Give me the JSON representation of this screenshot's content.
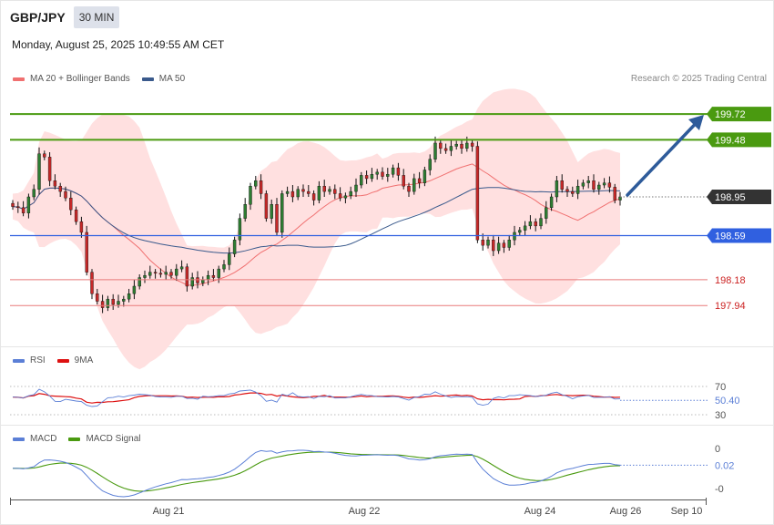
{
  "header": {
    "symbol": "GBP/JPY",
    "timeframe": "30 MIN",
    "datetime": "Monday, August 25, 2025 10:49:55 AM CET"
  },
  "legend": {
    "ma20_label": "MA 20 + Bollinger Bands",
    "ma50_label": "MA 50",
    "credit": "Research © 2025 Trading Central"
  },
  "colors": {
    "bb_fill": "#ffe0e0",
    "ma20": "#f07070",
    "ma50": "#3a5a8c",
    "resistance": "#4a9a10",
    "support": "#3060e0",
    "target": "#cc2222",
    "arrow": "#2e5b9a",
    "rsi": "#5b7fd6",
    "rsi_ma": "#dd1111",
    "macd": "#5b7fd6",
    "macd_signal": "#4a9a10"
  },
  "chart_data": [
    {
      "type": "candlestick",
      "ylim": [
        197.6,
        199.9
      ],
      "levels": [
        {
          "label": "199.72",
          "value": 199.72,
          "kind": "resistance"
        },
        {
          "label": "199.48",
          "value": 199.48,
          "kind": "resistance"
        },
        {
          "label": "198.95",
          "value": 198.95,
          "kind": "last"
        },
        {
          "label": "198.59",
          "value": 198.59,
          "kind": "support"
        },
        {
          "label": "198.18",
          "value": 198.18,
          "kind": "target"
        },
        {
          "label": "197.94",
          "value": 197.94,
          "kind": "target"
        }
      ],
      "x_ticks": [
        "Aug 21",
        "Aug 22",
        "Aug 24",
        "Aug 26",
        "Sep 10"
      ],
      "series": [
        {
          "name": "MA 20 + Bollinger Bands"
        },
        {
          "name": "MA 50"
        }
      ],
      "close": [
        198.86,
        198.85,
        198.8,
        198.95,
        199.02,
        199.35,
        199.32,
        199.1,
        199.05,
        199.0,
        198.94,
        198.83,
        198.72,
        198.62,
        198.25,
        198.05,
        197.98,
        197.92,
        198.0,
        197.95,
        197.98,
        198.0,
        198.05,
        198.12,
        198.2,
        198.22,
        198.25,
        198.24,
        198.23,
        198.25,
        198.22,
        198.28,
        198.3,
        198.12,
        198.2,
        198.15,
        198.18,
        198.22,
        198.2,
        198.28,
        198.32,
        198.42,
        198.55,
        198.75,
        198.88,
        199.05,
        199.1,
        198.98,
        198.75,
        198.88,
        198.62,
        198.98,
        199.0,
        198.95,
        199.02,
        199.0,
        198.98,
        198.92,
        199.05,
        199.0,
        199.02,
        198.98,
        198.94,
        198.96,
        199.0,
        199.06,
        199.15,
        199.12,
        199.16,
        199.18,
        199.14,
        199.16,
        199.22,
        199.15,
        199.05,
        199.0,
        199.12,
        199.08,
        199.2,
        199.3,
        199.45,
        199.4,
        199.38,
        199.42,
        199.44,
        199.4,
        199.45,
        199.42,
        198.55,
        198.5,
        198.55,
        198.45,
        198.52,
        198.48,
        198.55,
        198.62,
        198.64,
        198.68,
        198.72,
        198.68,
        198.75,
        198.85,
        198.95,
        199.1,
        199.02,
        199.0,
        198.98,
        199.05,
        199.08,
        199.1,
        199.02,
        199.06,
        199.08,
        199.04,
        198.92,
        198.95
      ],
      "rsi": {
        "name": "RSI",
        "ma_name": "9MA",
        "current": "50.40",
        "levels": [
          "70",
          "30"
        ],
        "ylim": [
          20,
          80
        ]
      },
      "macd": {
        "name": "MACD",
        "signal_name": "MACD Signal",
        "current": "0.02",
        "levels": [
          "0",
          "-0"
        ]
      }
    }
  ]
}
